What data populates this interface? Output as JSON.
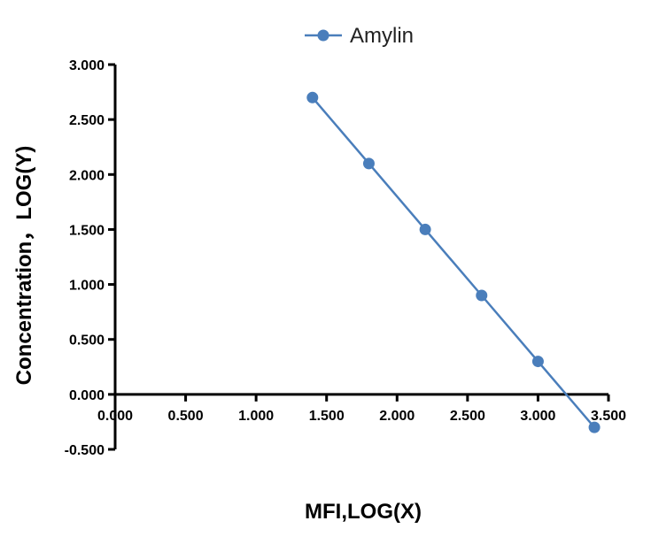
{
  "chart_data": {
    "type": "line",
    "xlabel": "MFI,LOG(X)",
    "ylabel": "Concentration，LOG(Y)",
    "xlim": [
      0,
      3.5
    ],
    "ylim": [
      -0.5,
      3
    ],
    "x_ticks": [
      "0.000",
      "0.500",
      "1.000",
      "1.500",
      "2.000",
      "2.500",
      "3.000",
      "3.500"
    ],
    "y_ticks": [
      "-0.500",
      "0.000",
      "0.500",
      "1.000",
      "1.500",
      "2.000",
      "2.500",
      "3.000"
    ],
    "x_tick_values": [
      0,
      0.5,
      1,
      1.5,
      2,
      2.5,
      3,
      3.5
    ],
    "y_tick_values": [
      -0.5,
      0,
      0.5,
      1,
      1.5,
      2,
      2.5,
      3
    ],
    "legend_position": "top-center",
    "grid": false,
    "series": [
      {
        "name": "Amylin",
        "color": "#4a7ebb",
        "marker": "circle",
        "x": [
          1.4,
          1.8,
          2.2,
          2.6,
          3.0,
          3.4
        ],
        "y": [
          2.7,
          2.1,
          1.5,
          0.9,
          0.3,
          -0.3
        ]
      }
    ]
  }
}
